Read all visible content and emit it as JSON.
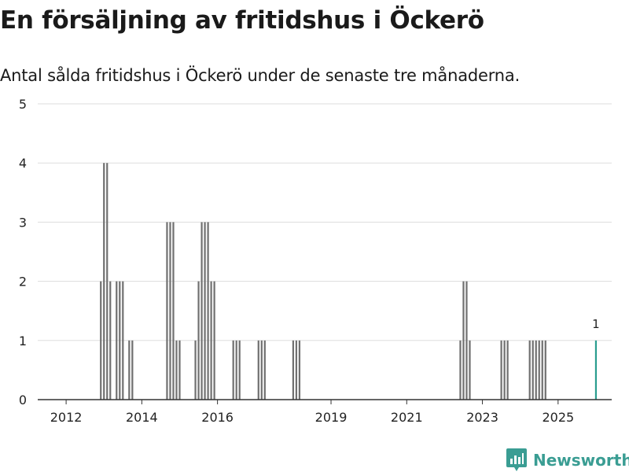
{
  "title": "En försäljning av fritidshus i Öckerö",
  "subtitle": "Antal sålda fritidshus i Öckerö under de senaste tre månaderna.",
  "brand": {
    "name": "Newsworthy",
    "icon": "newsworthy-logo-icon"
  },
  "colors": {
    "bar": "#707070",
    "highlight": "#2a9d8f",
    "grid": "#dddddd",
    "axis": "#333333",
    "brand": "#3a9d93"
  },
  "chart_data": {
    "type": "bar",
    "title": "En försäljning av fritidshus i Öckerö",
    "xlabel": "",
    "ylabel": "",
    "ylim": [
      0,
      5
    ],
    "yticks": [
      0,
      1,
      2,
      3,
      4,
      5
    ],
    "xlim": [
      "2011-04",
      "2026-06"
    ],
    "xticks": [
      "2012",
      "2014",
      "2016",
      "2019",
      "2021",
      "2023",
      "2025"
    ],
    "tick_months": [
      "2012-01",
      "2014-01",
      "2016-01",
      "2019-01",
      "2021-01",
      "2023-01",
      "2025-01"
    ],
    "months": [
      "2012-12",
      "2013-01",
      "2013-02",
      "2013-03",
      "2013-04",
      "2013-05",
      "2013-06",
      "2013-07",
      "2013-08",
      "2013-09",
      "2013-10",
      "2014-09",
      "2014-10",
      "2014-11",
      "2014-12",
      "2015-01",
      "2015-06",
      "2015-07",
      "2015-08",
      "2015-09",
      "2015-10",
      "2015-11",
      "2015-12",
      "2016-06",
      "2016-07",
      "2016-08",
      "2017-02",
      "2017-03",
      "2017-04",
      "2018-01",
      "2018-02",
      "2018-03",
      "2022-06",
      "2022-07",
      "2022-08",
      "2022-09",
      "2023-07",
      "2023-08",
      "2023-09",
      "2024-04",
      "2024-05",
      "2024-06",
      "2024-07",
      "2024-08",
      "2024-09",
      "2026-01"
    ],
    "values": [
      2,
      4,
      4,
      2,
      0,
      2,
      2,
      2,
      0,
      1,
      1,
      3,
      3,
      3,
      1,
      1,
      1,
      2,
      3,
      3,
      3,
      2,
      2,
      1,
      1,
      1,
      1,
      1,
      1,
      1,
      1,
      1,
      1,
      2,
      2,
      1,
      1,
      1,
      1,
      1,
      1,
      1,
      1,
      1,
      1,
      1
    ],
    "highlight_month": "2026-01",
    "highlight_label": "1"
  }
}
